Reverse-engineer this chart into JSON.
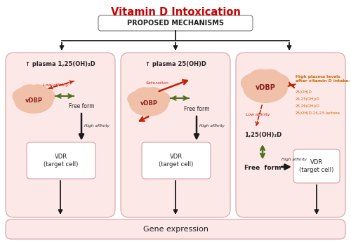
{
  "title": "Vitamin D Intoxication",
  "subtitle": "PROPOSED MECHANISMS",
  "bg_color": "#ffffff",
  "panel_bg": "#fde8e8",
  "panel_border": "#d8a0a0",
  "cloud_color": "#f0c0a8",
  "gene_box_color": "#fde8e8",
  "gene_box_border": "#d8a0a0",
  "gene_text": "Gene expression",
  "panel1_title": "↑ plasma 1,25(OH)₂D",
  "panel2_title": "↑ plasma 25(OH)D",
  "panel3_cloud_label": "vDBP",
  "panel1_low_affinity": "Low affinity",
  "panel2_saturation": "Saturation",
  "panel3_low_affinity": "Low affinity",
  "panel1_free_form": "Free form",
  "panel2_free_form": "Free form",
  "panel3_free_form": "Free  form",
  "panel1_vdbp": "vDBP",
  "panel2_vdbp": "vDBP",
  "panel1_high_affinity": "High affinity",
  "panel2_high_affinity": "High affinity",
  "panel3_high_affinity": "High affinity",
  "panel1_vdr": "VDR\n(target cell)",
  "panel2_vdr": "VDR\n(target cell)",
  "panel3_vdr": "VDR\n(target cell)",
  "panel3_calcitriol": "1,25(OH)₂D",
  "panel3_annot_title": "High plasma levels\nafter vitamin D intake:",
  "panel3_annot_lines": [
    "25(OH)D",
    "24,25(OH)₂D",
    "25,26(OH)₂D",
    "25(OH)D-26,23-lactone"
  ],
  "red_color": "#c42000",
  "green_color": "#4a7020",
  "black_color": "#1a1a1a",
  "orange_color": "#cc6600",
  "title_color": "#cc0000",
  "dark_text": "#222222",
  "vdbp_text_color": "#8B2020"
}
